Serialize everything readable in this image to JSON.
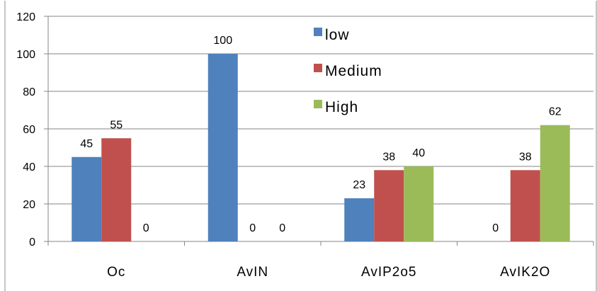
{
  "chart_data": {
    "type": "bar",
    "title": "",
    "xlabel": "",
    "ylabel": "",
    "categories": [
      "Oc",
      "AvIN",
      "AvIP2o5",
      "AvIK2O"
    ],
    "series": [
      {
        "name": "low",
        "color": "#4F81BD",
        "values": [
          45,
          100,
          23,
          0
        ]
      },
      {
        "name": "Medium",
        "color": "#C0504D",
        "values": [
          55,
          0,
          38,
          38
        ]
      },
      {
        "name": "High",
        "color": "#9BBB59",
        "values": [
          0,
          0,
          40,
          62
        ]
      }
    ],
    "ylim": [
      0,
      120
    ],
    "yticks": [
      "0",
      "20",
      "40",
      "60",
      "80",
      "100",
      "120"
    ],
    "data_labels": [
      [
        "45",
        "100",
        "23",
        "0"
      ],
      [
        "55",
        "0",
        "38",
        "38"
      ],
      [
        "0",
        "0",
        "40",
        "62"
      ]
    ],
    "grid": true,
    "legend_position": "top-center"
  }
}
